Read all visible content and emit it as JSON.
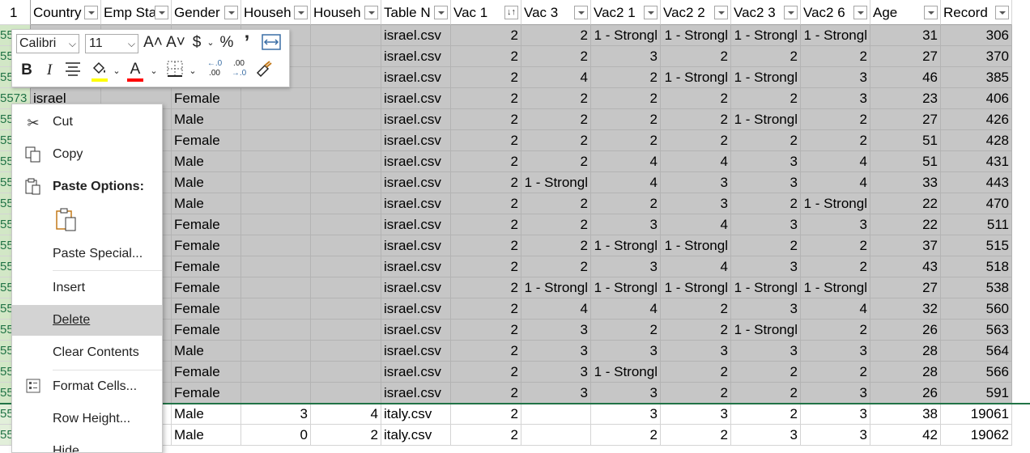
{
  "header": {
    "row_number": "1",
    "columns": [
      "Country",
      "Emp Sta",
      "Gender",
      "Househ",
      "Househ",
      "Table N",
      "Vac 1",
      "Vac 3",
      "Vac2 1",
      "Vac2 2",
      "Vac2 3",
      "Vac2 6",
      "Age",
      "Record"
    ],
    "sorted_column_indicator": "↓↑"
  },
  "rows": [
    {
      "rn": "55",
      "c": [
        "",
        "",
        "",
        "",
        "",
        "israel.csv",
        "2",
        "2",
        "1 - Strongl",
        "1 - Strongl",
        "1 - Strongl",
        "1 - Strongl",
        "31",
        "306"
      ],
      "sel": true
    },
    {
      "rn": "55",
      "c": [
        "",
        "",
        "",
        "",
        "",
        "israel.csv",
        "2",
        "2",
        "3",
        "2",
        "2",
        "2",
        "27",
        "370"
      ],
      "sel": true
    },
    {
      "rn": "55",
      "c": [
        "",
        "",
        "",
        "",
        "",
        "israel.csv",
        "2",
        "4",
        "2",
        "1 - Strongl",
        "1 - Strongl",
        "3",
        "46",
        "385"
      ],
      "sel": true
    },
    {
      "rn": "5573",
      "c": [
        "israel",
        "",
        "Female",
        "",
        "",
        "israel.csv",
        "2",
        "2",
        "2",
        "2",
        "2",
        "3",
        "23",
        "406"
      ],
      "sel": true
    },
    {
      "rn": "55",
      "c": [
        "",
        "",
        "Male",
        "",
        "",
        "israel.csv",
        "2",
        "2",
        "2",
        "2",
        "1 - Strongl",
        "2",
        "27",
        "426"
      ],
      "sel": true
    },
    {
      "rn": "55",
      "c": [
        "",
        "",
        "Female",
        "",
        "",
        "israel.csv",
        "2",
        "2",
        "2",
        "2",
        "2",
        "2",
        "51",
        "428"
      ],
      "sel": true
    },
    {
      "rn": "55",
      "c": [
        "",
        "",
        "Male",
        "",
        "",
        "israel.csv",
        "2",
        "2",
        "4",
        "4",
        "3",
        "4",
        "51",
        "431"
      ],
      "sel": true
    },
    {
      "rn": "55",
      "c": [
        "",
        "",
        "Male",
        "",
        "",
        "israel.csv",
        "2",
        "1 - Strongl",
        "4",
        "3",
        "3",
        "4",
        "33",
        "443"
      ],
      "sel": true
    },
    {
      "rn": "55",
      "c": [
        "",
        "",
        "Male",
        "",
        "",
        "israel.csv",
        "2",
        "2",
        "2",
        "3",
        "2",
        "1 - Strongl",
        "22",
        "470"
      ],
      "sel": true
    },
    {
      "rn": "55",
      "c": [
        "",
        "",
        "Female",
        "",
        "",
        "israel.csv",
        "2",
        "2",
        "3",
        "4",
        "3",
        "3",
        "22",
        "511"
      ],
      "sel": true
    },
    {
      "rn": "55",
      "c": [
        "",
        "",
        "Female",
        "",
        "",
        "israel.csv",
        "2",
        "2",
        "1 - Strongl",
        "1 - Strongl",
        "2",
        "2",
        "37",
        "515"
      ],
      "sel": true
    },
    {
      "rn": "55",
      "c": [
        "",
        "",
        "Female",
        "",
        "",
        "israel.csv",
        "2",
        "2",
        "3",
        "4",
        "3",
        "2",
        "43",
        "518"
      ],
      "sel": true
    },
    {
      "rn": "55",
      "c": [
        "",
        "",
        "Female",
        "",
        "",
        "israel.csv",
        "2",
        "1 - Strongl",
        "1 - Strongl",
        "1 - Strongl",
        "1 - Strongl",
        "1 - Strongl",
        "27",
        "538"
      ],
      "sel": true
    },
    {
      "rn": "55",
      "c": [
        "",
        "",
        "Female",
        "",
        "",
        "israel.csv",
        "2",
        "4",
        "4",
        "2",
        "3",
        "4",
        "32",
        "560"
      ],
      "sel": true
    },
    {
      "rn": "55",
      "c": [
        "",
        "",
        "Female",
        "",
        "",
        "israel.csv",
        "2",
        "3",
        "2",
        "2",
        "1 - Strongl",
        "2",
        "26",
        "563"
      ],
      "sel": true
    },
    {
      "rn": "55",
      "c": [
        "",
        "",
        "Male",
        "",
        "",
        "israel.csv",
        "2",
        "3",
        "3",
        "3",
        "3",
        "3",
        "28",
        "564"
      ],
      "sel": true
    },
    {
      "rn": "55",
      "c": [
        "",
        "",
        "Female",
        "",
        "",
        "israel.csv",
        "2",
        "3",
        "1 - Strongl",
        "2",
        "2",
        "2",
        "28",
        "566"
      ],
      "sel": true
    },
    {
      "rn": "55",
      "c": [
        "",
        "",
        "Female",
        "",
        "",
        "israel.csv",
        "2",
        "3",
        "3",
        "2",
        "2",
        "3",
        "26",
        "591"
      ],
      "sel": true
    },
    {
      "rn": "55",
      "c": [
        "",
        "e",
        "Male",
        "3",
        "4",
        "italy.csv",
        "2",
        "",
        "3",
        "3",
        "2",
        "3",
        "38",
        "19061"
      ],
      "sel": false
    },
    {
      "rn": "55",
      "c": [
        "",
        "e",
        "Male",
        "0",
        "2",
        "italy.csv",
        "2",
        "",
        "2",
        "2",
        "3",
        "3",
        "42",
        "19062"
      ],
      "sel": false
    }
  ],
  "mini_toolbar": {
    "font_name": "Calibri",
    "font_size": "11",
    "grow_font": "A˄",
    "shrink_font": "A˅",
    "currency": "$",
    "percent": "%",
    "comma": "’",
    "bold": "B",
    "italic": "I",
    "font_color_letter": "A",
    "increase_decimal_top": "←.0",
    "increase_decimal_bottom": ".00",
    "decrease_decimal_top": ".00",
    "decrease_decimal_bottom": "→.0",
    "fill_color": "#ffff00",
    "font_color": "#ff0000"
  },
  "context_menu": {
    "items": [
      {
        "label": "Cut",
        "icon": "scissors-icon"
      },
      {
        "label": "Copy",
        "icon": "copy-icon"
      },
      {
        "label": "Paste Options:",
        "icon": "paste-icon"
      },
      {
        "label": "Paste Special...",
        "icon": ""
      },
      {
        "label": "Insert",
        "icon": ""
      },
      {
        "label": "Delete",
        "icon": ""
      },
      {
        "label": "Clear Contents",
        "icon": ""
      },
      {
        "label": "Format Cells...",
        "icon": "format-cells-icon"
      },
      {
        "label": "Row Height...",
        "icon": ""
      },
      {
        "label": "Hide",
        "icon": ""
      }
    ]
  },
  "colors": {
    "selection_fill": "#c6c6c6",
    "selection_border": "#217346",
    "menu_highlight": "#d3d3d3"
  }
}
